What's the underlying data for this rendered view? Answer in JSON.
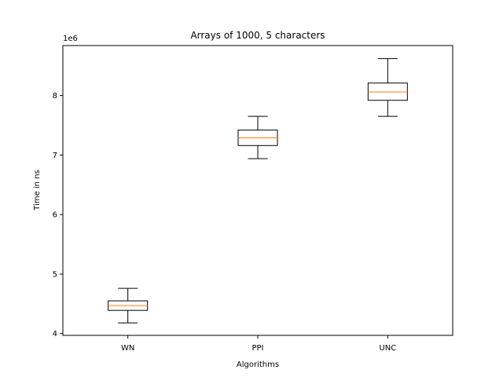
{
  "chart_data": {
    "type": "box",
    "title": "Arrays of 1000, 5 characters",
    "xlabel": "Algorithms",
    "ylabel": "Time in ns",
    "y_offset_label": "1e6",
    "y_scale_factor": 1000000,
    "ylim": [
      3.97,
      8.84
    ],
    "y_ticks": [
      4,
      5,
      6,
      7,
      8
    ],
    "grid": false,
    "categories": [
      "WN",
      "PPI",
      "UNC"
    ],
    "boxes": [
      {
        "label": "WN",
        "whisker_low": 4.18,
        "q1": 4.39,
        "median": 4.47,
        "q3": 4.55,
        "whisker_high": 4.76
      },
      {
        "label": "PPI",
        "whisker_low": 6.94,
        "q1": 7.16,
        "median": 7.29,
        "q3": 7.42,
        "whisker_high": 7.65
      },
      {
        "label": "UNC",
        "whisker_low": 7.65,
        "q1": 7.92,
        "median": 8.06,
        "q3": 8.21,
        "whisker_high": 8.62
      }
    ],
    "colors": {
      "box": "#000000",
      "median": "#ff7f0e",
      "axes": "#000000"
    }
  }
}
